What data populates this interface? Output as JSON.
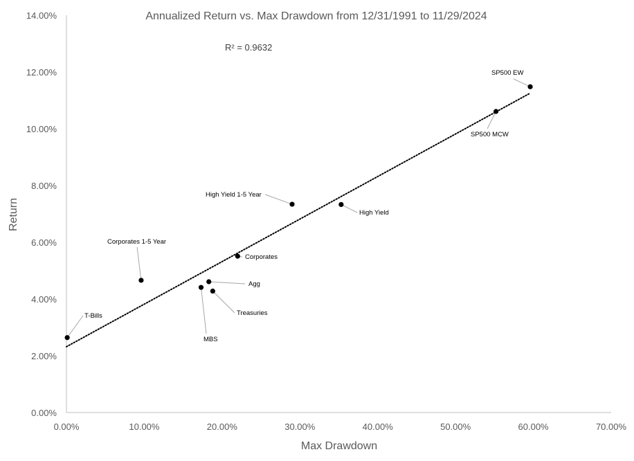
{
  "chart_data": {
    "type": "scatter",
    "title": "Annualized Return vs. Max Drawdown from 12/31/1991 to 11/29/2024",
    "xlabel": "Max Drawdown",
    "ylabel": "Return",
    "xlim": [
      0,
      0.7
    ],
    "ylim": [
      0,
      0.14
    ],
    "x_ticks": [
      0,
      0.1,
      0.2,
      0.3,
      0.4,
      0.5,
      0.6,
      0.7
    ],
    "x_tick_labels": [
      "0.00%",
      "10.00%",
      "20.00%",
      "30.00%",
      "40.00%",
      "50.00%",
      "60.00%",
      "70.00%"
    ],
    "y_ticks": [
      0,
      0.02,
      0.04,
      0.06,
      0.08,
      0.1,
      0.12,
      0.14
    ],
    "y_tick_labels": [
      "0.00%",
      "2.00%",
      "4.00%",
      "6.00%",
      "8.00%",
      "10.00%",
      "12.00%",
      "14.00%"
    ],
    "grid": false,
    "legend": "none",
    "r_squared_label": "R² = 0.9632",
    "trendline": {
      "style": "dotted",
      "x": [
        0.0,
        0.595
      ],
      "y": [
        0.0232,
        0.1124
      ]
    },
    "points": [
      {
        "name": "T-Bills",
        "x": 0.001,
        "y": 0.0264
      },
      {
        "name": "Corporates 1-5 Year",
        "x": 0.096,
        "y": 0.0466
      },
      {
        "name": "MBS",
        "x": 0.173,
        "y": 0.0441
      },
      {
        "name": "Agg",
        "x": 0.183,
        "y": 0.0461
      },
      {
        "name": "Treasuries",
        "x": 0.188,
        "y": 0.0428
      },
      {
        "name": "Corporates",
        "x": 0.22,
        "y": 0.0551
      },
      {
        "name": "High Yield 1-5 Year",
        "x": 0.29,
        "y": 0.0734
      },
      {
        "name": "High Yield",
        "x": 0.353,
        "y": 0.0733
      },
      {
        "name": "SP500 MCW",
        "x": 0.552,
        "y": 0.1061
      },
      {
        "name": "SP500 EW",
        "x": 0.596,
        "y": 0.1148
      }
    ],
    "colors": {
      "marker": "#000000",
      "axis": "#bfbfbf",
      "text": "#595959"
    }
  }
}
